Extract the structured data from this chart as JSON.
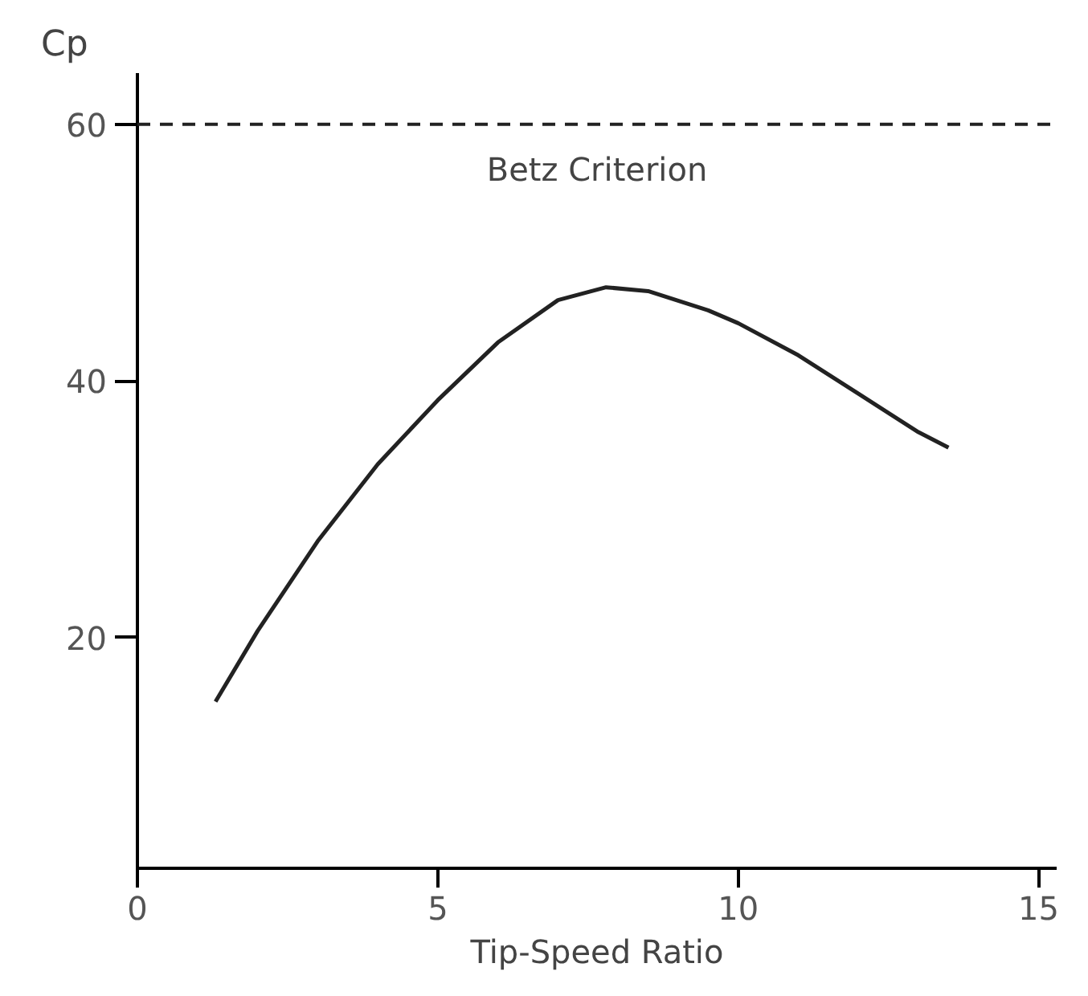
{
  "chart_data": {
    "type": "line",
    "xlabel": "Tip-Speed Ratio",
    "ylabel": "Cp",
    "x": [
      1.3,
      2,
      3,
      4,
      5,
      6,
      7,
      7.8,
      8.5,
      9.5,
      10,
      11,
      12,
      13,
      13.5
    ],
    "series": [
      {
        "color": "#222222",
        "values": [
          15,
          20.5,
          27.5,
          33.5,
          38.5,
          43,
          46.3,
          47.3,
          47,
          45.5,
          44.5,
          42,
          39,
          36,
          34.8
        ]
      }
    ],
    "xlim": [
      0,
      15.3
    ],
    "ylim": [
      2,
      64
    ],
    "xticks": [
      0,
      5,
      10,
      15
    ],
    "yticks": [
      20,
      40,
      60
    ],
    "ref_lines": [
      {
        "axis": "y",
        "value": 60,
        "label": "Betz Criterion",
        "color": "#222222",
        "line_style": "dashed"
      }
    ],
    "grid": false,
    "marker": "none",
    "line_style": "solid"
  }
}
